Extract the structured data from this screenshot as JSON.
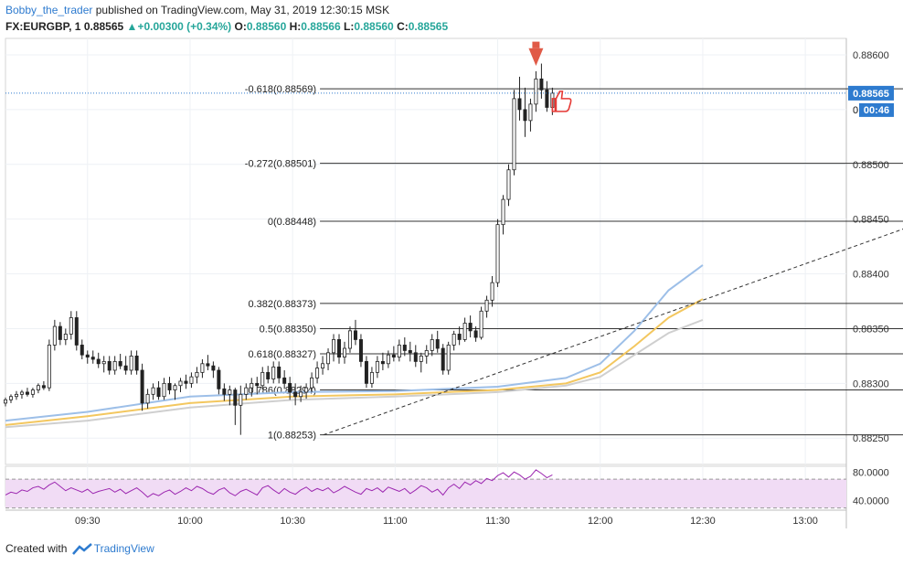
{
  "header": {
    "author": "Bobby_the_trader",
    "published_text": "published on TradingView.com, May 31, 2019 12:30:15 MSK",
    "symbol": "FX:EURGBP, 1",
    "last": "0.88565",
    "change": "+0.00300 (+0.34%)",
    "o_label": "O:",
    "o_value": "0.88560",
    "h_label": "H:",
    "h_value": "0.88566",
    "l_label": "L:",
    "l_value": "0.88560",
    "c_label": "C:",
    "c_value": "0.88565"
  },
  "footer": {
    "created_with": "Created with",
    "brand": "TradingView"
  },
  "colors": {
    "up": "#26a69a",
    "candle": "#222222",
    "fib": "#333333",
    "ma_fast": "#9dbfe8",
    "ma_mid": "#f3c75f",
    "ma_slow": "#cfcfcf",
    "rsi": "#9c27b0",
    "rsi_band": "#f1dcf5",
    "price_tag": "#2e7bcf",
    "arrow": "#e05a47",
    "thumb": "#e53935"
  },
  "chart_data": {
    "type": "candlestick",
    "ylim": [
      0.88226,
      0.88615
    ],
    "y_ticks": [
      "0.88600",
      "0.88550",
      "0.88500",
      "0.88450",
      "0.88400",
      "0.88350",
      "0.88300",
      "0.88250"
    ],
    "y_tick_values": [
      0.886,
      0.8855,
      0.885,
      0.8845,
      0.884,
      0.8835,
      0.883,
      0.8825
    ],
    "x_tick_labels": [
      "09:30",
      "10:00",
      "10:30",
      "11:00",
      "11:30",
      "12:00",
      "12:30",
      "13:00"
    ],
    "x_tick_minutes": [
      570,
      600,
      630,
      660,
      690,
      720,
      750,
      780
    ],
    "last_price_tag": "0.88565",
    "countdown_tag": "00:46",
    "countdown_prefix": "0",
    "candles": [
      [
        0.88282,
        0.88287,
        0.88279,
        0.88285
      ],
      [
        0.88285,
        0.8829,
        0.88282,
        0.88288
      ],
      [
        0.88288,
        0.88293,
        0.88285,
        0.8829
      ],
      [
        0.8829,
        0.88294,
        0.88286,
        0.88292
      ],
      [
        0.88292,
        0.88296,
        0.88288,
        0.8829
      ],
      [
        0.8829,
        0.88296,
        0.88287,
        0.88294
      ],
      [
        0.88294,
        0.883,
        0.88291,
        0.88298
      ],
      [
        0.88298,
        0.88302,
        0.88294,
        0.88296
      ],
      [
        0.88296,
        0.8834,
        0.88293,
        0.88335
      ],
      [
        0.88335,
        0.88358,
        0.8833,
        0.88352
      ],
      [
        0.88352,
        0.88356,
        0.88335,
        0.8834
      ],
      [
        0.8834,
        0.8835,
        0.88335,
        0.88345
      ],
      [
        0.88345,
        0.88366,
        0.8834,
        0.8836
      ],
      [
        0.8836,
        0.88366,
        0.8833,
        0.88335
      ],
      [
        0.88335,
        0.8834,
        0.88322,
        0.88326
      ],
      [
        0.88326,
        0.8833,
        0.88318,
        0.88324
      ],
      [
        0.88324,
        0.8833,
        0.88318,
        0.88322
      ],
      [
        0.88322,
        0.88328,
        0.88314,
        0.88318
      ],
      [
        0.88318,
        0.88325,
        0.8831,
        0.8832
      ],
      [
        0.8832,
        0.88325,
        0.88308,
        0.88312
      ],
      [
        0.88312,
        0.88325,
        0.88308,
        0.8832
      ],
      [
        0.8832,
        0.88327,
        0.88313,
        0.88316
      ],
      [
        0.88316,
        0.88325,
        0.88308,
        0.88312
      ],
      [
        0.88312,
        0.8833,
        0.88308,
        0.88325
      ],
      [
        0.88325,
        0.8833,
        0.88308,
        0.88312
      ],
      [
        0.88312,
        0.88318,
        0.88275,
        0.88282
      ],
      [
        0.88282,
        0.88295,
        0.88277,
        0.8829
      ],
      [
        0.8829,
        0.883,
        0.88285,
        0.88296
      ],
      [
        0.88296,
        0.88302,
        0.88285,
        0.88288
      ],
      [
        0.88288,
        0.88305,
        0.88285,
        0.883
      ],
      [
        0.883,
        0.88306,
        0.8829,
        0.88294
      ],
      [
        0.88294,
        0.883,
        0.88285,
        0.88298
      ],
      [
        0.88298,
        0.88305,
        0.88292,
        0.88302
      ],
      [
        0.88302,
        0.88308,
        0.88295,
        0.883
      ],
      [
        0.883,
        0.8831,
        0.88296,
        0.88306
      ],
      [
        0.88306,
        0.88315,
        0.883,
        0.8831
      ],
      [
        0.8831,
        0.88322,
        0.88305,
        0.88318
      ],
      [
        0.88318,
        0.88326,
        0.88312,
        0.88316
      ],
      [
        0.88316,
        0.8832,
        0.88305,
        0.88312
      ],
      [
        0.88312,
        0.88315,
        0.8829,
        0.88295
      ],
      [
        0.88295,
        0.883,
        0.88284,
        0.8829
      ],
      [
        0.8829,
        0.88298,
        0.8828,
        0.88294
      ],
      [
        0.88294,
        0.88296,
        0.88262,
        0.8828
      ],
      [
        0.8828,
        0.88298,
        0.88253,
        0.8829
      ],
      [
        0.8829,
        0.883,
        0.88285,
        0.88296
      ],
      [
        0.88296,
        0.88305,
        0.88288,
        0.883
      ],
      [
        0.883,
        0.88306,
        0.8829,
        0.88298
      ],
      [
        0.88298,
        0.88315,
        0.88294,
        0.8831
      ],
      [
        0.8831,
        0.88316,
        0.883,
        0.88304
      ],
      [
        0.88304,
        0.8832,
        0.883,
        0.88315
      ],
      [
        0.88315,
        0.8832,
        0.883,
        0.88305
      ],
      [
        0.88305,
        0.88312,
        0.88295,
        0.883
      ],
      [
        0.883,
        0.88306,
        0.88285,
        0.88292
      ],
      [
        0.88292,
        0.883,
        0.8828,
        0.88288
      ],
      [
        0.88288,
        0.88298,
        0.88283,
        0.88292
      ],
      [
        0.88292,
        0.883,
        0.88286,
        0.88296
      ],
      [
        0.88296,
        0.8831,
        0.88292,
        0.88305
      ],
      [
        0.88305,
        0.8832,
        0.883,
        0.88314
      ],
      [
        0.88314,
        0.88325,
        0.88308,
        0.88318
      ],
      [
        0.88318,
        0.88332,
        0.88312,
        0.88328
      ],
      [
        0.88328,
        0.88345,
        0.8832,
        0.8834
      ],
      [
        0.8834,
        0.88345,
        0.88318,
        0.88324
      ],
      [
        0.88324,
        0.88338,
        0.88318,
        0.88332
      ],
      [
        0.88332,
        0.88352,
        0.88328,
        0.88348
      ],
      [
        0.88348,
        0.88358,
        0.88335,
        0.8834
      ],
      [
        0.8834,
        0.88345,
        0.88315,
        0.8832
      ],
      [
        0.8832,
        0.88325,
        0.88296,
        0.883
      ],
      [
        0.883,
        0.88315,
        0.88296,
        0.8831
      ],
      [
        0.8831,
        0.88325,
        0.88305,
        0.8832
      ],
      [
        0.8832,
        0.88328,
        0.88312,
        0.88318
      ],
      [
        0.88318,
        0.8833,
        0.88314,
        0.88326
      ],
      [
        0.88326,
        0.88334,
        0.8832,
        0.88324
      ],
      [
        0.88324,
        0.8834,
        0.8832,
        0.88335
      ],
      [
        0.88335,
        0.88342,
        0.88325,
        0.8833
      ],
      [
        0.8833,
        0.88338,
        0.8832,
        0.88328
      ],
      [
        0.88328,
        0.88335,
        0.88315,
        0.8832
      ],
      [
        0.8832,
        0.88328,
        0.8831,
        0.88325
      ],
      [
        0.88325,
        0.88335,
        0.88318,
        0.8833
      ],
      [
        0.8833,
        0.88345,
        0.88325,
        0.8834
      ],
      [
        0.8834,
        0.88348,
        0.88328,
        0.88332
      ],
      [
        0.88332,
        0.88336,
        0.88308,
        0.88312
      ],
      [
        0.88312,
        0.88338,
        0.88308,
        0.88335
      ],
      [
        0.88335,
        0.88348,
        0.8833,
        0.88345
      ],
      [
        0.88345,
        0.88352,
        0.88335,
        0.8834
      ],
      [
        0.8834,
        0.8836,
        0.88338,
        0.88355
      ],
      [
        0.88355,
        0.88362,
        0.88342,
        0.88348
      ],
      [
        0.88348,
        0.88352,
        0.88338,
        0.88342
      ],
      [
        0.88342,
        0.8837,
        0.8834,
        0.88366
      ],
      [
        0.88366,
        0.8838,
        0.8836,
        0.88376
      ],
      [
        0.88376,
        0.88398,
        0.8837,
        0.88392
      ],
      [
        0.88392,
        0.8845,
        0.88388,
        0.88445
      ],
      [
        0.88445,
        0.88472,
        0.88436,
        0.88468
      ],
      [
        0.88468,
        0.885,
        0.88462,
        0.88495
      ],
      [
        0.88495,
        0.88568,
        0.8849,
        0.8856
      ],
      [
        0.8856,
        0.8858,
        0.8854,
        0.8855
      ],
      [
        0.8855,
        0.8857,
        0.88525,
        0.8854
      ],
      [
        0.8854,
        0.8856,
        0.8853,
        0.88555
      ],
      [
        0.88555,
        0.88585,
        0.88548,
        0.88578
      ],
      [
        0.88578,
        0.88592,
        0.8856,
        0.88568
      ],
      [
        0.88568,
        0.88576,
        0.88548,
        0.88552
      ],
      [
        0.88552,
        0.8857,
        0.88545,
        0.88565
      ]
    ],
    "candle_start_minute": 546,
    "candle_step_minutes": 1.6,
    "ma_fast": [
      [
        546,
        0.88266
      ],
      [
        570,
        0.88274
      ],
      [
        600,
        0.88288
      ],
      [
        630,
        0.88292
      ],
      [
        660,
        0.88293
      ],
      [
        690,
        0.88297
      ],
      [
        710,
        0.88305
      ],
      [
        720,
        0.88318
      ],
      [
        730,
        0.88348
      ],
      [
        740,
        0.88385
      ],
      [
        750,
        0.88408
      ]
    ],
    "ma_mid": [
      [
        546,
        0.88262
      ],
      [
        570,
        0.8827
      ],
      [
        600,
        0.88282
      ],
      [
        630,
        0.88288
      ],
      [
        660,
        0.8829
      ],
      [
        690,
        0.88294
      ],
      [
        710,
        0.883
      ],
      [
        720,
        0.8831
      ],
      [
        730,
        0.88334
      ],
      [
        740,
        0.8836
      ],
      [
        750,
        0.88377
      ]
    ],
    "ma_slow": [
      [
        546,
        0.8826
      ],
      [
        570,
        0.88266
      ],
      [
        600,
        0.88278
      ],
      [
        630,
        0.88285
      ],
      [
        660,
        0.88288
      ],
      [
        690,
        0.88292
      ],
      [
        710,
        0.88298
      ],
      [
        720,
        0.88306
      ],
      [
        730,
        0.88326
      ],
      [
        740,
        0.88346
      ],
      [
        750,
        0.88358
      ]
    ],
    "trendline": [
      [
        639,
        0.88253
      ],
      [
        815,
        0.88448
      ]
    ],
    "fib_start_minute": 638,
    "fib_end_minute": 817,
    "fib_levels": [
      {
        "label": "-0.618(0.88569)",
        "value": 0.88569
      },
      {
        "label": "-0.272(0.88501)",
        "value": 0.88501
      },
      {
        "label": "0(0.88448)",
        "value": 0.88448
      },
      {
        "label": "0.382(0.88373)",
        "value": 0.88373
      },
      {
        "label": "0.5(0.88350)",
        "value": 0.8835
      },
      {
        "label": "0.618(0.88327)",
        "value": 0.88327
      },
      {
        "label": "0.786(0.88294)",
        "value": 0.88294
      },
      {
        "label": "1(0.88253)",
        "value": 0.88253
      }
    ],
    "rsi": {
      "ylim": [
        32,
        88
      ],
      "upper": 70,
      "lower": 30,
      "y_tick_labels": [
        "80.0000",
        "40.0000"
      ],
      "y_tick_values": [
        80,
        40
      ],
      "values": [
        48,
        52,
        50,
        55,
        53,
        58,
        60,
        56,
        62,
        66,
        60,
        54,
        58,
        55,
        52,
        56,
        50,
        53,
        55,
        57,
        52,
        56,
        50,
        54,
        58,
        52,
        45,
        50,
        47,
        52,
        55,
        49,
        53,
        58,
        54,
        60,
        57,
        52,
        49,
        55,
        58,
        51,
        47,
        53,
        56,
        52,
        48,
        58,
        61,
        55,
        50,
        57,
        52,
        49,
        55,
        59,
        53,
        57,
        54,
        58,
        51,
        55,
        60,
        56,
        52,
        49,
        57,
        54,
        58,
        52,
        59,
        56,
        53,
        57,
        50,
        55,
        61,
        58,
        52,
        56,
        48,
        58,
        63,
        57,
        66,
        62,
        68,
        64,
        71,
        68,
        75,
        79,
        73,
        80,
        76,
        70,
        74,
        83,
        78,
        72,
        76
      ]
    }
  }
}
